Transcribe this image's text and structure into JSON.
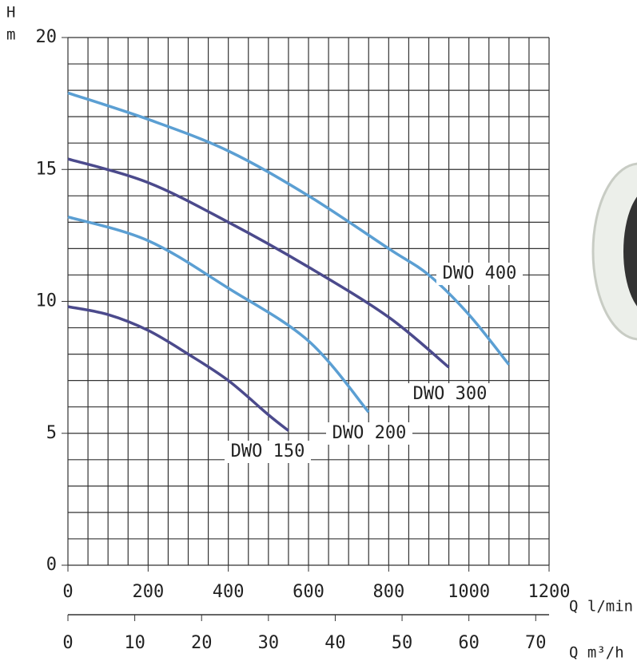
{
  "chart_data": {
    "type": "line",
    "y_label_top": "H",
    "y_label_unit": "m",
    "x_label": "Q l/min",
    "x2_label": "Q m³/h",
    "xlim": [
      0,
      1200
    ],
    "xticks": [
      0,
      200,
      400,
      600,
      800,
      1000,
      1200
    ],
    "x2lim": [
      0,
      72
    ],
    "x2ticks": [
      0,
      10,
      20,
      30,
      40,
      50,
      60,
      70
    ],
    "ylim": [
      0,
      20
    ],
    "yticks": [
      0,
      5,
      10,
      15,
      20
    ],
    "grid": true,
    "series": [
      {
        "name": "DWO 400",
        "color": "#5b9fd3",
        "x": [
          0,
          200,
          400,
          600,
          800,
          900,
          1000,
          1100
        ],
        "values": [
          17.9,
          16.9,
          15.7,
          14.0,
          12.0,
          11.0,
          9.5,
          7.6
        ]
      },
      {
        "name": "DWO 300",
        "color": "#4b4a8c",
        "x": [
          0,
          200,
          400,
          600,
          800,
          950
        ],
        "values": [
          15.4,
          14.5,
          13.0,
          11.3,
          9.4,
          7.5
        ]
      },
      {
        "name": "DWO 200",
        "color": "#5b9fd3",
        "x": [
          0,
          200,
          400,
          600,
          750
        ],
        "values": [
          13.2,
          12.3,
          10.5,
          8.5,
          5.8
        ]
      },
      {
        "name": "DWO 150",
        "color": "#4b4a8c",
        "x": [
          0,
          100,
          200,
          300,
          400,
          500,
          550
        ],
        "values": [
          9.8,
          9.5,
          8.9,
          8.0,
          7.0,
          5.7,
          5.1
        ]
      }
    ]
  }
}
